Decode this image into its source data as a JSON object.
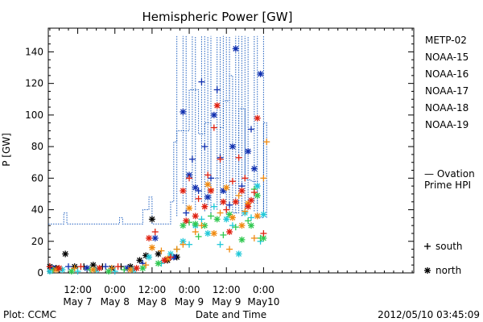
{
  "chart_data": {
    "type": "scatter",
    "title": "Hemispheric Power [GW]",
    "ylabel": "P [GW]",
    "xlabel": "Date and Time",
    "x_unit": "hours from 2012-05-06 00:00 UT",
    "xlim": [
      2.5,
      120.5
    ],
    "ylim": [
      0,
      155
    ],
    "y_ticks": [
      0,
      20,
      40,
      60,
      80,
      100,
      120,
      140
    ],
    "x_ticks": [
      {
        "x": 12,
        "l1": "12:00",
        "l2": "May 7"
      },
      {
        "x": 24,
        "l1": "0:00",
        "l2": "May 8"
      },
      {
        "x": 36,
        "l1": "12:00",
        "l2": "May 8"
      },
      {
        "x": 48,
        "l1": "0:00",
        "l2": "May 9"
      },
      {
        "x": 60,
        "l1": "12:00",
        "l2": "May 9"
      },
      {
        "x": 72,
        "l1": "0:00",
        "l2": "May10"
      }
    ],
    "grid": false,
    "legend_position": "right",
    "marker_legend": [
      {
        "symbol": "+",
        "label": "south"
      },
      {
        "symbol": "*",
        "label": "north"
      }
    ],
    "ovation": {
      "name": "— Ovation Prime HPI",
      "color": "#1f5fbf",
      "steps": [
        [
          2.5,
          31
        ],
        [
          7.5,
          38
        ],
        [
          8.5,
          31
        ],
        [
          25.5,
          35
        ],
        [
          26.5,
          31
        ],
        [
          33,
          40
        ],
        [
          35,
          48
        ],
        [
          36,
          31
        ],
        [
          42,
          45
        ],
        [
          43,
          83
        ],
        [
          44,
          90
        ],
        [
          48,
          116
        ],
        [
          51,
          88
        ],
        [
          53,
          95
        ],
        [
          55,
          60
        ],
        [
          58,
          92
        ],
        [
          59,
          109
        ],
        [
          61,
          125
        ],
        [
          62,
          38
        ],
        [
          64,
          104
        ],
        [
          66,
          59
        ],
        [
          68,
          58
        ],
        [
          70,
          35
        ],
        [
          72,
          95
        ],
        [
          73,
          93
        ]
      ],
      "end_x": 73,
      "vlines": [
        [
          44,
          36,
          150
        ],
        [
          46,
          44,
          150
        ],
        [
          47,
          36,
          150
        ],
        [
          49,
          45,
          150
        ],
        [
          50,
          40,
          150
        ],
        [
          52,
          45,
          150
        ],
        [
          53,
          39,
          150
        ],
        [
          54,
          43,
          150
        ],
        [
          55,
          38,
          150
        ],
        [
          57,
          40,
          150
        ],
        [
          58,
          43,
          150
        ],
        [
          59,
          50,
          150
        ],
        [
          60,
          37,
          150
        ],
        [
          61,
          40,
          150
        ],
        [
          63,
          38,
          150
        ],
        [
          64,
          44,
          150
        ],
        [
          65,
          36,
          150
        ],
        [
          66,
          41,
          150
        ],
        [
          67,
          43,
          150
        ],
        [
          69,
          39,
          150
        ],
        [
          70,
          44,
          150
        ],
        [
          71,
          150,
          150
        ],
        [
          72,
          39,
          150
        ],
        [
          73,
          35,
          95
        ]
      ]
    },
    "series": [
      {
        "name": "METP-02",
        "color": "#000000",
        "points": [
          [
            3,
            4,
            "*"
          ],
          [
            5,
            3,
            "*"
          ],
          [
            8,
            12,
            "*"
          ],
          [
            11,
            4,
            "*"
          ],
          [
            14,
            4,
            "+"
          ],
          [
            17,
            5,
            "*"
          ],
          [
            20,
            4,
            "+"
          ],
          [
            23,
            3,
            "*"
          ],
          [
            26,
            4,
            "+"
          ],
          [
            29,
            4,
            "*"
          ],
          [
            32,
            8,
            "*"
          ],
          [
            34,
            11,
            "*"
          ],
          [
            36,
            34,
            "*"
          ],
          [
            38,
            12,
            "*"
          ],
          [
            41,
            8,
            "*"
          ],
          [
            44,
            10,
            "*"
          ]
        ]
      },
      {
        "name": "NOAA-15",
        "color": "#1030b0",
        "points": [
          [
            4,
            3,
            "*"
          ],
          [
            9,
            4,
            "+"
          ],
          [
            15,
            3,
            "*"
          ],
          [
            21,
            4,
            "+"
          ],
          [
            28,
            3,
            "*"
          ],
          [
            33,
            6,
            "+"
          ],
          [
            37,
            22,
            "*"
          ],
          [
            40,
            8,
            "+"
          ],
          [
            43,
            10,
            "*"
          ],
          [
            46,
            102,
            "*"
          ],
          [
            47,
            38,
            "+"
          ],
          [
            48,
            62,
            "*"
          ],
          [
            49,
            72,
            "+"
          ],
          [
            50,
            54,
            "*"
          ],
          [
            51,
            52,
            "+"
          ],
          [
            52,
            121,
            "+"
          ],
          [
            53,
            80,
            "+"
          ],
          [
            54,
            48,
            "*"
          ],
          [
            55,
            60,
            "+"
          ],
          [
            56,
            100,
            "*"
          ],
          [
            57,
            116,
            "+"
          ],
          [
            58,
            73,
            "+"
          ],
          [
            59,
            52,
            "*"
          ],
          [
            61,
            43,
            "+"
          ],
          [
            62,
            80,
            "*"
          ],
          [
            63,
            142,
            "*"
          ],
          [
            65,
            55,
            "+"
          ],
          [
            67,
            77,
            "*"
          ],
          [
            68,
            91,
            "+"
          ],
          [
            69,
            66,
            "*"
          ],
          [
            71,
            126,
            "*"
          ]
        ]
      },
      {
        "name": "NOAA-16",
        "color": "#20c8d8",
        "points": [
          [
            3,
            1,
            "*"
          ],
          [
            7,
            2,
            "*"
          ],
          [
            12,
            1,
            "+"
          ],
          [
            18,
            2,
            "*"
          ],
          [
            24,
            1,
            "+"
          ],
          [
            30,
            2,
            "*"
          ],
          [
            35,
            10,
            "*"
          ],
          [
            39,
            6,
            "+"
          ],
          [
            42,
            12,
            "*"
          ],
          [
            46,
            20,
            "*"
          ],
          [
            48,
            18,
            "+"
          ],
          [
            50,
            30,
            "*"
          ],
          [
            52,
            34,
            "+"
          ],
          [
            54,
            25,
            "*"
          ],
          [
            56,
            42,
            "+"
          ],
          [
            58,
            18,
            "+"
          ],
          [
            60,
            34,
            "*"
          ],
          [
            62,
            30,
            "+"
          ],
          [
            64,
            12,
            "*"
          ],
          [
            66,
            38,
            "*"
          ],
          [
            68,
            35,
            "+"
          ],
          [
            70,
            55,
            "*"
          ],
          [
            71,
            20,
            "+"
          ],
          [
            72,
            37,
            "*"
          ]
        ]
      },
      {
        "name": "NOAA-17",
        "color": "#30c850",
        "points": [
          [
            4,
            2,
            "+"
          ],
          [
            10,
            1,
            "*"
          ],
          [
            16,
            2,
            "+"
          ],
          [
            22,
            1,
            "*"
          ],
          [
            27,
            2,
            "+"
          ],
          [
            33,
            3,
            "*"
          ],
          [
            38,
            6,
            "*"
          ],
          [
            44,
            15,
            "+"
          ],
          [
            46,
            30,
            "*"
          ],
          [
            48,
            32,
            "+"
          ],
          [
            50,
            31,
            "*"
          ],
          [
            51,
            23,
            "+"
          ],
          [
            53,
            30,
            "*"
          ],
          [
            55,
            36,
            "+"
          ],
          [
            57,
            34,
            "*"
          ],
          [
            59,
            24,
            "+"
          ],
          [
            61,
            37,
            "*"
          ],
          [
            63,
            29,
            "+"
          ],
          [
            65,
            21,
            "*"
          ],
          [
            67,
            33,
            "+"
          ],
          [
            68,
            30,
            "*"
          ],
          [
            69,
            53,
            "+"
          ],
          [
            70,
            49,
            "*"
          ],
          [
            71,
            22,
            "+"
          ],
          [
            72,
            22,
            "*"
          ]
        ]
      },
      {
        "name": "NOAA-18",
        "color": "#f08a10",
        "points": [
          [
            5,
            2,
            "*"
          ],
          [
            11,
            3,
            "+"
          ],
          [
            17,
            2,
            "*"
          ],
          [
            23,
            3,
            "+"
          ],
          [
            29,
            2,
            "*"
          ],
          [
            34,
            5,
            "+"
          ],
          [
            36,
            16,
            "*"
          ],
          [
            39,
            14,
            "+"
          ],
          [
            41,
            9,
            "*"
          ],
          [
            44,
            15,
            "+"
          ],
          [
            46,
            18,
            "+"
          ],
          [
            48,
            41,
            "*"
          ],
          [
            50,
            26,
            "+"
          ],
          [
            52,
            30,
            "+"
          ],
          [
            54,
            56,
            "*"
          ],
          [
            55,
            53,
            "+"
          ],
          [
            56,
            25,
            "*"
          ],
          [
            58,
            38,
            "+"
          ],
          [
            60,
            54,
            "*"
          ],
          [
            61,
            15,
            "+"
          ],
          [
            62,
            35,
            "*"
          ],
          [
            64,
            49,
            "+"
          ],
          [
            65,
            30,
            "*"
          ],
          [
            66,
            39,
            "+"
          ],
          [
            67,
            44,
            "*"
          ],
          [
            69,
            22,
            "+"
          ],
          [
            70,
            36,
            "*"
          ],
          [
            72,
            60,
            "+"
          ],
          [
            73,
            83,
            "+"
          ]
        ]
      },
      {
        "name": "NOAA-19",
        "color": "#e02010",
        "points": [
          [
            3,
            4,
            "+"
          ],
          [
            6,
            3,
            "*"
          ],
          [
            13,
            4,
            "+"
          ],
          [
            19,
            3,
            "*"
          ],
          [
            25,
            4,
            "+"
          ],
          [
            31,
            3,
            "*"
          ],
          [
            35,
            22,
            "*"
          ],
          [
            37,
            26,
            "+"
          ],
          [
            40,
            8,
            "*"
          ],
          [
            42,
            10,
            "+"
          ],
          [
            46,
            52,
            "*"
          ],
          [
            47,
            33,
            "*"
          ],
          [
            48,
            60,
            "+"
          ],
          [
            50,
            36,
            "*"
          ],
          [
            51,
            47,
            "+"
          ],
          [
            53,
            42,
            "*"
          ],
          [
            54,
            62,
            "+"
          ],
          [
            55,
            52,
            "*"
          ],
          [
            56,
            92,
            "+"
          ],
          [
            57,
            106,
            "*"
          ],
          [
            58,
            72,
            "+"
          ],
          [
            59,
            45,
            "*"
          ],
          [
            60,
            40,
            "+"
          ],
          [
            61,
            26,
            "*"
          ],
          [
            62,
            58,
            "+"
          ],
          [
            63,
            45,
            "*"
          ],
          [
            64,
            73,
            "+"
          ],
          [
            65,
            52,
            "*"
          ],
          [
            66,
            60,
            "+"
          ],
          [
            67,
            42,
            "*"
          ],
          [
            68,
            46,
            "*"
          ],
          [
            69,
            51,
            "+"
          ],
          [
            70,
            98,
            "*"
          ],
          [
            72,
            25,
            "+"
          ]
        ]
      }
    ]
  },
  "footer": {
    "left": "Plot: CCMC",
    "center": "Date and Time",
    "right": "2012/05/10 03:45:09"
  }
}
